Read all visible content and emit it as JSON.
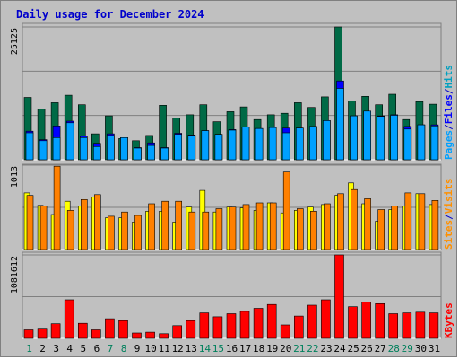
{
  "colors": {
    "background": "#c0c0c0",
    "panel": "#c0c0c0",
    "title": "#0000cc",
    "pages": "#006a46",
    "files": "#0000ff",
    "hits": "#00a0ff",
    "visits": "#ffff00",
    "sites": "#ff8000",
    "kbytes": "#ff0000",
    "weekend_day": "#00805c",
    "weekday": "#000000",
    "legend_pages": "#00a0c0",
    "legend_files": "#0000ff",
    "legend_hits": "#00a0ff",
    "legend_visits": "#ff9000",
    "legend_sites": "#ff9000",
    "legend_kbytes": "#ff0000"
  },
  "chart_data": {
    "type": "bar",
    "title": "Daily usage for December 2024",
    "categories": [
      "1",
      "2",
      "3",
      "4",
      "5",
      "6",
      "7",
      "8",
      "9",
      "10",
      "11",
      "12",
      "13",
      "14",
      "15",
      "16",
      "17",
      "18",
      "19",
      "20",
      "21",
      "22",
      "23",
      "24",
      "25",
      "26",
      "27",
      "28",
      "29",
      "30",
      "31"
    ],
    "weekend_days": [
      "1",
      "7",
      "8",
      "14",
      "15",
      "21",
      "22",
      "28",
      "29"
    ],
    "panels": [
      {
        "id": "hits",
        "ymax_label": "25125",
        "ymax": 25125,
        "legend": [
          "Pages",
          "/",
          "Files",
          "/",
          "Hits"
        ],
        "series": [
          {
            "name": "Hits",
            "values": [
              11800,
              9600,
              10800,
              12200,
              10400,
              4900,
              8300,
              4000,
              3600,
              4600,
              10300,
              7900,
              8500,
              10400,
              7200,
              9100,
              10000,
              7600,
              8500,
              8800,
              10800,
              9900,
              11900,
              25125,
              11100,
              12000,
              10400,
              12400,
              7600,
              11000,
              10500
            ]
          },
          {
            "name": "Files",
            "values": [
              5400,
              3800,
              6400,
              7300,
              4500,
              3100,
              4900,
              4200,
              2300,
              3200,
              2300,
              5000,
              4700,
              5500,
              4800,
              5700,
              6200,
              5900,
              6100,
              6000,
              6000,
              6300,
              7400,
              14900,
              8300,
              9200,
              8300,
              8500,
              6300,
              6600,
              6600
            ]
          },
          {
            "name": "Pages",
            "values": [
              5100,
              3600,
              4200,
              7000,
              4200,
              2500,
              4600,
              4200,
              2200,
              2700,
              2200,
              4800,
              4600,
              5500,
              4800,
              5600,
              6200,
              5900,
              6100,
              5100,
              6000,
              6300,
              7400,
              13500,
              8300,
              9200,
              8200,
              8400,
              5800,
              6600,
              6400
            ]
          }
        ]
      },
      {
        "id": "visits",
        "ymax_label": "1013",
        "ymax": 1013,
        "legend": [
          "Sites",
          "/",
          "Visits"
        ],
        "series": [
          {
            "name": "Visits",
            "values": [
              680,
              530,
              420,
              580,
              520,
              630,
              380,
              380,
              330,
              460,
              460,
              330,
              510,
              710,
              450,
              510,
              500,
              470,
              560,
              440,
              470,
              510,
              540,
              650,
              800,
              550,
              340,
              480,
              520,
              670,
              540
            ]
          },
          {
            "name": "Sites",
            "values": [
              650,
              520,
              1000,
              470,
              600,
              660,
              400,
              450,
              410,
              550,
              580,
              580,
              450,
              450,
              490,
              510,
              540,
              560,
              560,
              930,
              490,
              460,
              550,
              670,
              720,
              610,
              480,
              520,
              680,
              670,
              590
            ]
          }
        ]
      },
      {
        "id": "kbytes",
        "ymax_label": "1081612",
        "ymax": 1081612,
        "legend": [
          "KBytes"
        ],
        "series": [
          {
            "name": "KBytes",
            "values": [
              110000,
              120000,
              190000,
              500000,
              195000,
              110000,
              255000,
              230000,
              70000,
              80000,
              60000,
              165000,
              230000,
              330000,
              280000,
              320000,
              350000,
              390000,
              440000,
              175000,
              290000,
              430000,
              500000,
              1081612,
              410000,
              470000,
              450000,
              320000,
              330000,
              340000,
              330000
            ]
          }
        ]
      }
    ]
  }
}
